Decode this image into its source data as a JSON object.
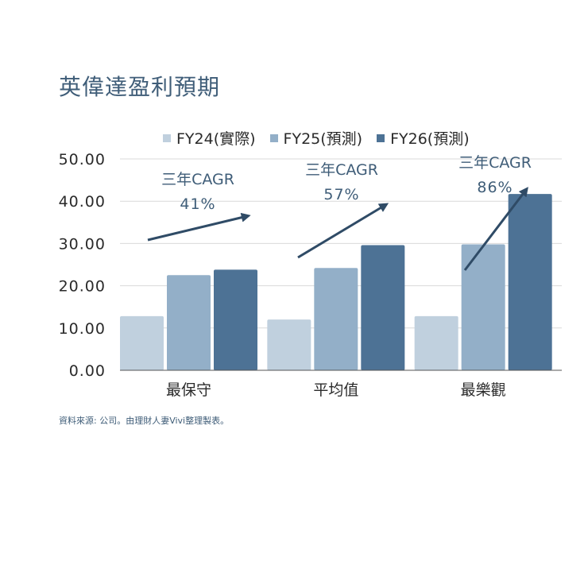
{
  "title": "英偉達盈利預期",
  "source": "資料來源: 公司。由理財人妻Vivi整理製表。",
  "colors": {
    "series": [
      "#c0d0de",
      "#93afc8",
      "#4d7295"
    ],
    "annotation": "#3f5d78",
    "arrow": "#2f4b66",
    "grid": "#d9d9d9",
    "axis": "#555555"
  },
  "chart_data": {
    "type": "bar",
    "categories": [
      "最保守",
      "平均值",
      "最樂觀"
    ],
    "series": [
      {
        "name": "FY24(實際)",
        "values": [
          12.8,
          12.0,
          12.8
        ]
      },
      {
        "name": "FY25(預測)",
        "values": [
          22.5,
          24.2,
          29.8
        ]
      },
      {
        "name": "FY26(預測)",
        "values": [
          23.8,
          29.6,
          41.7
        ]
      }
    ],
    "ylim": [
      0,
      50
    ],
    "yticks": [
      "0.00",
      "10.00",
      "20.00",
      "30.00",
      "40.00",
      "50.00"
    ],
    "grid": true,
    "legend": "top",
    "annotations": [
      {
        "line1": "三年CAGR",
        "line2": "41%"
      },
      {
        "line1": "三年CAGR",
        "line2": "57%"
      },
      {
        "line1": "三年CAGR",
        "line2": "86%"
      }
    ]
  }
}
